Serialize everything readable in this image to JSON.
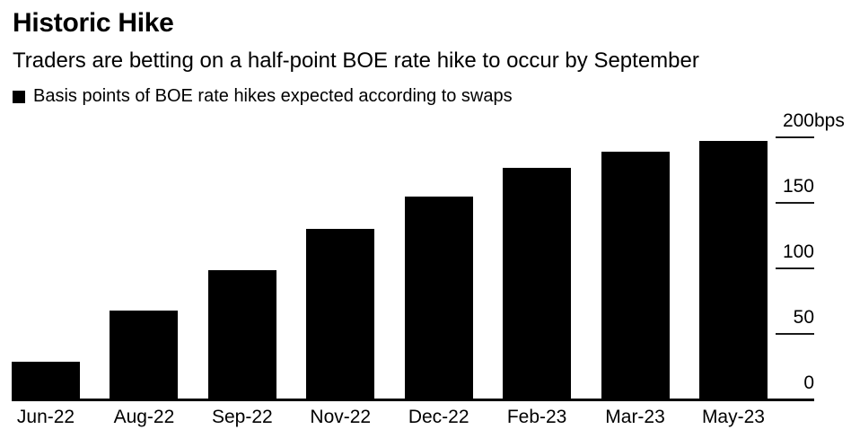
{
  "header": {
    "title": "Historic Hike",
    "subtitle": "Traders are betting on a half-point BOE rate hike to occur by September",
    "legend_label": "Basis points of BOE rate hikes expected according to swaps"
  },
  "colors": {
    "bar": "#000000",
    "text": "#000000",
    "axis": "#000000",
    "tick": "#1a1a1a",
    "background": "#ffffff"
  },
  "chart_data": {
    "type": "bar",
    "title": "Historic Hike",
    "subtitle": "Traders are betting on a half-point BOE rate hike to occur by September",
    "series_label": "Basis points of BOE rate hikes expected according to swaps",
    "categories": [
      "Jun-22",
      "Aug-22",
      "Sep-22",
      "Nov-22",
      "Dec-22",
      "Feb-23",
      "Mar-23",
      "May-23"
    ],
    "values": [
      29,
      68,
      99,
      130,
      155,
      177,
      189,
      197
    ],
    "unit": "bps",
    "xlabel": "",
    "ylabel": "",
    "ylim": [
      0,
      200
    ],
    "yticks": [
      {
        "value": 0,
        "label": "0",
        "suffix": "",
        "tick": false
      },
      {
        "value": 50,
        "label": "50",
        "suffix": "",
        "tick": true
      },
      {
        "value": 100,
        "label": "100",
        "suffix": "",
        "tick": true
      },
      {
        "value": 150,
        "label": "150",
        "suffix": "",
        "tick": true
      },
      {
        "value": 200,
        "label": "200",
        "suffix": "bps",
        "tick": true
      }
    ],
    "grid": false,
    "legend_position": "top-left",
    "axis_side": "right",
    "bar_color": "#000000"
  }
}
